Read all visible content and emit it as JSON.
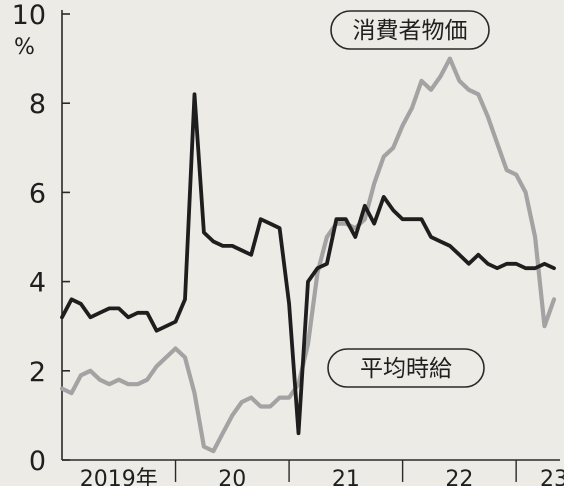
{
  "chart_data": {
    "type": "line",
    "unit_label": "%",
    "y_ticks": [
      0,
      2,
      4,
      6,
      8,
      10
    ],
    "ylim": [
      0,
      10
    ],
    "x_tick_labels": [
      "2019年",
      "20",
      "21",
      "22",
      "23"
    ],
    "x_range": [
      "2019-01",
      "2023-05"
    ],
    "grid": false,
    "legend": "callouts",
    "x": [
      "2019-01",
      "2019-02",
      "2019-03",
      "2019-04",
      "2019-05",
      "2019-06",
      "2019-07",
      "2019-08",
      "2019-09",
      "2019-10",
      "2019-11",
      "2019-12",
      "2020-01",
      "2020-02",
      "2020-03",
      "2020-04",
      "2020-05",
      "2020-06",
      "2020-07",
      "2020-08",
      "2020-09",
      "2020-10",
      "2020-11",
      "2020-12",
      "2021-01",
      "2021-02",
      "2021-03",
      "2021-04",
      "2021-05",
      "2021-06",
      "2021-07",
      "2021-08",
      "2021-09",
      "2021-10",
      "2021-11",
      "2021-12",
      "2022-01",
      "2022-02",
      "2022-03",
      "2022-04",
      "2022-05",
      "2022-06",
      "2022-07",
      "2022-08",
      "2022-09",
      "2022-10",
      "2022-11",
      "2022-12",
      "2023-01",
      "2023-02",
      "2023-03",
      "2023-04",
      "2023-05"
    ],
    "series": [
      {
        "name": "消費者物価",
        "color": "#a3a3a3",
        "values": [
          1.6,
          1.5,
          1.9,
          2.0,
          1.8,
          1.7,
          1.8,
          1.7,
          1.7,
          1.8,
          2.1,
          2.3,
          2.5,
          2.3,
          1.5,
          0.3,
          0.2,
          0.6,
          1.0,
          1.3,
          1.4,
          1.2,
          1.2,
          1.4,
          1.4,
          1.7,
          2.6,
          4.2,
          5.0,
          5.3,
          5.3,
          5.2,
          5.4,
          6.2,
          6.8,
          7.0,
          7.5,
          7.9,
          8.5,
          8.3,
          8.6,
          9.0,
          8.5,
          8.3,
          8.2,
          7.7,
          7.1,
          6.5,
          6.4,
          6.0,
          5.0,
          3.0,
          3.6
        ]
      },
      {
        "name": "平均時給",
        "color": "#1e1e1e",
        "values": [
          3.2,
          3.6,
          3.5,
          3.2,
          3.3,
          3.4,
          3.4,
          3.2,
          3.3,
          3.3,
          2.9,
          3.0,
          3.1,
          3.6,
          8.2,
          5.1,
          4.9,
          4.8,
          4.8,
          4.7,
          4.6,
          5.4,
          5.3,
          5.2,
          3.5,
          0.6,
          4.0,
          4.3,
          4.4,
          5.4,
          5.4,
          5.0,
          5.7,
          5.3,
          5.9,
          5.6,
          5.4,
          5.4,
          5.4,
          5.0,
          4.9,
          4.8,
          4.6,
          4.4,
          4.6,
          4.4,
          4.3,
          4.4,
          4.4,
          4.3,
          4.3,
          4.4,
          4.3
        ]
      }
    ],
    "annotations": [
      {
        "series": "消費者物価",
        "text": "消費者物価"
      },
      {
        "series": "平均時給",
        "text": "平均時給"
      }
    ]
  }
}
